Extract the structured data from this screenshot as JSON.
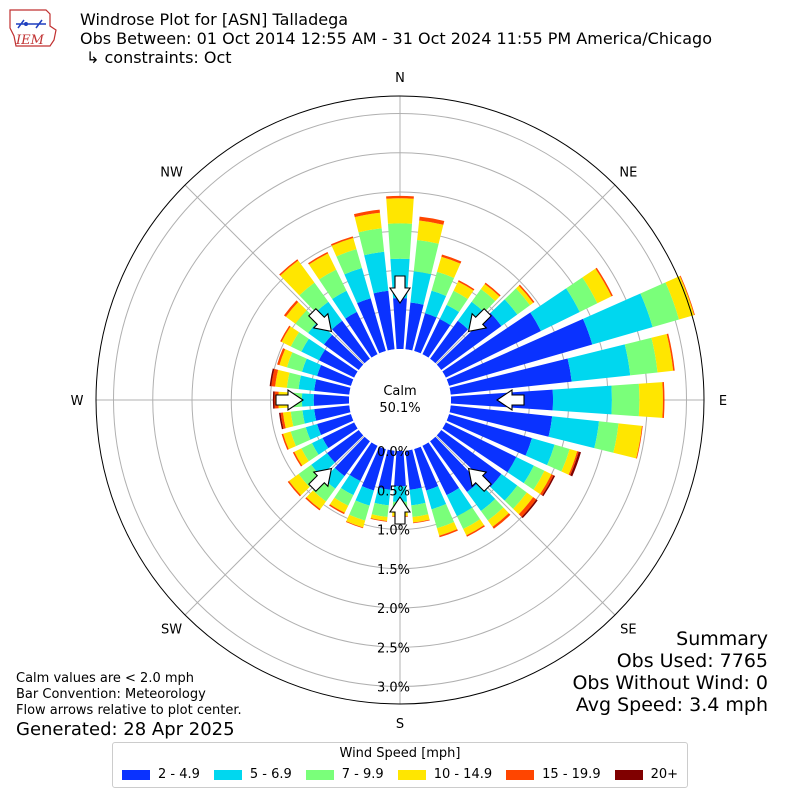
{
  "logo": {
    "text": "IEM"
  },
  "header": {
    "title": "Windrose Plot for [ASN] Talladega",
    "subtitle": "Obs Between: 01 Oct 2014 12:55 AM - 31 Oct 2024 11:55 PM America/Chicago",
    "constraints": "↳ constraints: Oct"
  },
  "summary": {
    "heading": "Summary",
    "obs_used": "Obs Used: 7765",
    "obs_without_wind": "Obs Without Wind: 0",
    "avg_speed": "Avg Speed: 3.4 mph"
  },
  "notes": {
    "calm_note": "Calm values are < 2.0 mph",
    "bar_convention": "Bar Convention: Meteorology",
    "flow_arrows": "Flow arrows relative to plot center."
  },
  "generated": "Generated: 28 Apr 2025",
  "legend": {
    "title": "Wind Speed [mph]"
  },
  "chart_data": {
    "type": "windrose",
    "calm_label": "Calm",
    "calm_percent": "50.1%",
    "compass_labels": [
      "N",
      "NE",
      "E",
      "SE",
      "S",
      "SW",
      "W",
      "NW"
    ],
    "radial_ticks": [
      "0.0%",
      "0.5%",
      "1.0%",
      "1.5%",
      "2.0%",
      "2.5%",
      "3.0%"
    ],
    "radial_values": [
      0.0,
      0.5,
      1.0,
      1.5,
      2.0,
      2.5,
      3.0
    ],
    "bins": [
      {
        "name": "2 - 4.9",
        "color": "#0a32ff"
      },
      {
        "name": "5 - 6.9",
        "color": "#00d7ef"
      },
      {
        "name": "7 - 9.9",
        "color": "#7aff7a"
      },
      {
        "name": "10 - 14.9",
        "color": "#ffe600"
      },
      {
        "name": "15 - 19.9",
        "color": "#ff4500"
      },
      {
        "name": "20+",
        "color": "#800000"
      }
    ],
    "directions": [
      0,
      10,
      20,
      30,
      40,
      50,
      60,
      70,
      80,
      90,
      100,
      110,
      120,
      130,
      140,
      150,
      160,
      170,
      180,
      190,
      200,
      210,
      220,
      230,
      240,
      250,
      260,
      270,
      280,
      290,
      300,
      310,
      320,
      330,
      340,
      350
    ],
    "cumulative_percent": [
      [
        0.65,
        1.15,
        1.6,
        1.92,
        1.95,
        1.95
      ],
      [
        0.6,
        1.0,
        1.4,
        1.65,
        1.7,
        1.7
      ],
      [
        0.5,
        0.8,
        1.05,
        1.25,
        1.28,
        1.28
      ],
      [
        0.5,
        0.7,
        0.9,
        1.03,
        1.05,
        1.05
      ],
      [
        0.6,
        0.9,
        1.1,
        1.18,
        1.2,
        1.2
      ],
      [
        0.95,
        1.2,
        1.4,
        1.45,
        1.47,
        1.47
      ],
      [
        1.35,
        1.9,
        2.15,
        2.35,
        2.37,
        2.37
      ],
      [
        1.9,
        2.7,
        3.05,
        3.25,
        3.26,
        3.26
      ],
      [
        1.55,
        2.3,
        2.65,
        2.85,
        2.87,
        2.87
      ],
      [
        1.3,
        2.05,
        2.4,
        2.7,
        2.72,
        2.72
      ],
      [
        1.3,
        1.9,
        2.15,
        2.45,
        2.46,
        2.46
      ],
      [
        1.1,
        1.4,
        1.6,
        1.7,
        1.72,
        1.75
      ],
      [
        1.0,
        1.25,
        1.4,
        1.5,
        1.53,
        1.55
      ],
      [
        0.95,
        1.2,
        1.35,
        1.45,
        1.5,
        1.52
      ],
      [
        0.8,
        1.1,
        1.25,
        1.35,
        1.38,
        1.38
      ],
      [
        0.7,
        1.0,
        1.18,
        1.27,
        1.29,
        1.29
      ],
      [
        0.55,
        0.8,
        1.05,
        1.15,
        1.17,
        1.17
      ],
      [
        0.5,
        0.7,
        0.85,
        0.92,
        0.93,
        0.93
      ],
      [
        0.45,
        0.65,
        0.78,
        0.83,
        0.84,
        0.84
      ],
      [
        0.5,
        0.7,
        0.85,
        0.9,
        0.91,
        0.91
      ],
      [
        0.55,
        0.75,
        0.95,
        1.04,
        1.05,
        1.05
      ],
      [
        0.5,
        0.7,
        0.85,
        0.95,
        0.97,
        0.97
      ],
      [
        0.55,
        0.75,
        0.95,
        1.07,
        1.09,
        1.09
      ],
      [
        0.5,
        0.75,
        0.95,
        1.1,
        1.12,
        1.12
      ],
      [
        0.45,
        0.6,
        0.75,
        0.85,
        0.87,
        0.87
      ],
      [
        0.45,
        0.6,
        0.8,
        0.9,
        0.92,
        0.92
      ],
      [
        0.45,
        0.6,
        0.75,
        0.85,
        0.88,
        0.9
      ],
      [
        0.45,
        0.6,
        0.75,
        0.9,
        0.95,
        0.97
      ],
      [
        0.45,
        0.65,
        0.8,
        0.95,
        1.0,
        1.02
      ],
      [
        0.45,
        0.65,
        0.85,
        0.95,
        0.98,
        0.98
      ],
      [
        0.5,
        0.75,
        0.9,
        1.03,
        1.05,
        1.05
      ],
      [
        0.55,
        0.8,
        1.0,
        1.15,
        1.18,
        1.18
      ],
      [
        0.6,
        0.9,
        1.2,
        1.55,
        1.57,
        1.57
      ],
      [
        0.6,
        0.9,
        1.2,
        1.43,
        1.45,
        1.45
      ],
      [
        0.7,
        1.1,
        1.35,
        1.5,
        1.52,
        1.52
      ],
      [
        0.75,
        1.25,
        1.55,
        1.75,
        1.79,
        1.79
      ]
    ]
  }
}
